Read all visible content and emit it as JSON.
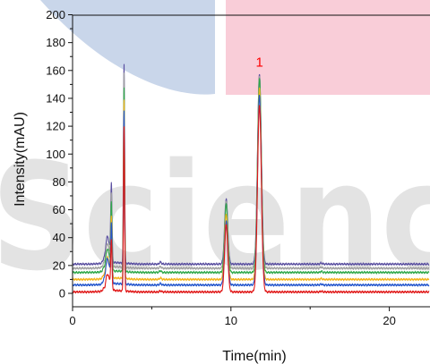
{
  "chart_data": {
    "type": "line",
    "title": "",
    "xlabel": "Time(min)",
    "ylabel": "Intensity(mAU)",
    "xlim": [
      0,
      22.5
    ],
    "ylim": [
      -10,
      200
    ],
    "x_ticks": [
      0,
      10,
      20
    ],
    "y_ticks": [
      0,
      20,
      40,
      60,
      80,
      100,
      120,
      140,
      160,
      180,
      200
    ],
    "grid": false,
    "legend": "none",
    "annotations": [
      {
        "text": "1",
        "x": 11.8,
        "y": 166,
        "color": "#ff0000"
      }
    ],
    "series": [
      {
        "color": "#5a4fa0",
        "baseline": 21,
        "peaks": [
          {
            "x": 2.2,
            "height": 19,
            "width": 0.14
          },
          {
            "x": 2.45,
            "height": 54,
            "width": 0.04
          },
          {
            "x": 3.25,
            "height": 143,
            "width": 0.035
          },
          {
            "x": 5.55,
            "height": 1.5,
            "width": 0.06
          },
          {
            "x": 9.7,
            "height": 47,
            "width": 0.1
          },
          {
            "x": 11.8,
            "height": 136,
            "width": 0.12
          },
          {
            "x": 15.7,
            "height": 0.8,
            "width": 0.06
          }
        ]
      },
      {
        "color": "#9e9e9e",
        "baseline": 18,
        "peaks": [
          {
            "x": 2.2,
            "height": 17,
            "width": 0.14
          },
          {
            "x": 2.45,
            "height": 50,
            "width": 0.04
          },
          {
            "x": 3.25,
            "height": 140,
            "width": 0.035
          },
          {
            "x": 5.55,
            "height": 1.2,
            "width": 0.06
          },
          {
            "x": 9.7,
            "height": 48,
            "width": 0.1
          },
          {
            "x": 11.8,
            "height": 138,
            "width": 0.12
          },
          {
            "x": 15.7,
            "height": 0.8,
            "width": 0.06
          }
        ]
      },
      {
        "color": "#2fa84a",
        "baseline": 15,
        "peaks": [
          {
            "x": 2.2,
            "height": 16,
            "width": 0.14
          },
          {
            "x": 2.45,
            "height": 46,
            "width": 0.04
          },
          {
            "x": 3.25,
            "height": 132,
            "width": 0.035
          },
          {
            "x": 5.55,
            "height": 1.2,
            "width": 0.06
          },
          {
            "x": 9.7,
            "height": 49,
            "width": 0.1
          },
          {
            "x": 11.8,
            "height": 140,
            "width": 0.12
          },
          {
            "x": 15.7,
            "height": 0.8,
            "width": 0.06
          }
        ]
      },
      {
        "color": "#f2b21a",
        "baseline": 10,
        "peaks": [
          {
            "x": 2.2,
            "height": 15,
            "width": 0.14
          },
          {
            "x": 2.45,
            "height": 42,
            "width": 0.04
          },
          {
            "x": 3.25,
            "height": 128,
            "width": 0.035
          },
          {
            "x": 5.55,
            "height": 1.0,
            "width": 0.06
          },
          {
            "x": 9.7,
            "height": 47,
            "width": 0.1
          },
          {
            "x": 11.8,
            "height": 137,
            "width": 0.12
          },
          {
            "x": 15.7,
            "height": 0.6,
            "width": 0.06
          }
        ]
      },
      {
        "color": "#2255cc",
        "baseline": 6,
        "peaks": [
          {
            "x": 2.2,
            "height": 18,
            "width": 0.14
          },
          {
            "x": 2.45,
            "height": 40,
            "width": 0.04
          },
          {
            "x": 3.25,
            "height": 125,
            "width": 0.035
          },
          {
            "x": 5.55,
            "height": 1.0,
            "width": 0.06
          },
          {
            "x": 9.7,
            "height": 46,
            "width": 0.1
          },
          {
            "x": 11.8,
            "height": 136,
            "width": 0.12
          },
          {
            "x": 15.7,
            "height": 0.6,
            "width": 0.06
          }
        ]
      },
      {
        "color": "#e01818",
        "baseline": 1,
        "peaks": [
          {
            "x": 2.2,
            "height": 12,
            "width": 0.14
          },
          {
            "x": 2.45,
            "height": 34,
            "width": 0.04
          },
          {
            "x": 3.25,
            "height": 118,
            "width": 0.035
          },
          {
            "x": 5.55,
            "height": 0.8,
            "width": 0.06
          },
          {
            "x": 9.7,
            "height": 48,
            "width": 0.1
          },
          {
            "x": 11.8,
            "height": 134,
            "width": 0.12
          },
          {
            "x": 15.7,
            "height": 0.5,
            "width": 0.06
          }
        ]
      }
    ]
  },
  "watermark": {
    "text": "Scienc",
    "color": "#e0e0e0",
    "shapes": {
      "blue_color": "#c9d6ea",
      "pink_color": "#f9cdd8"
    }
  }
}
